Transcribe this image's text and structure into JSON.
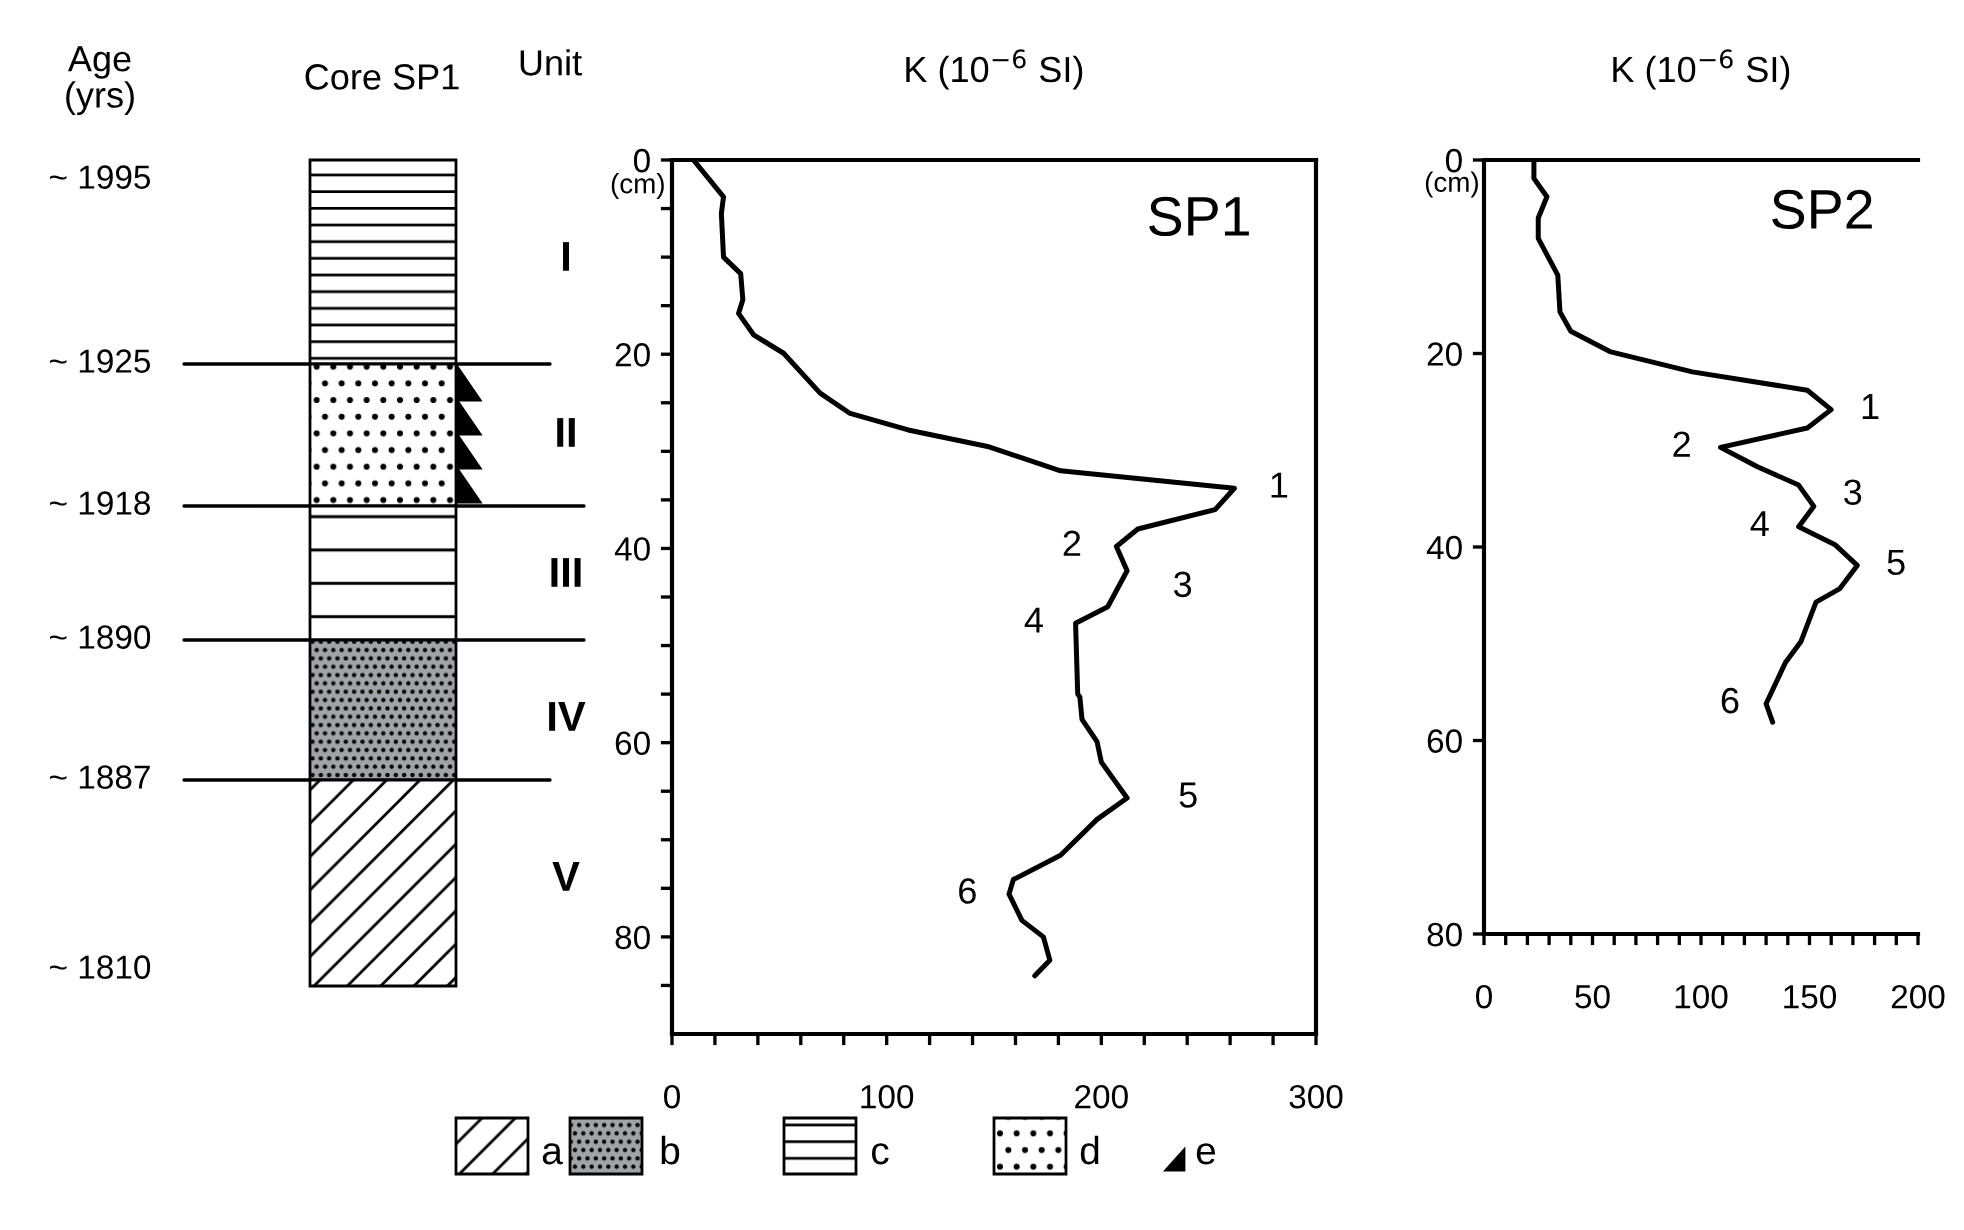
{
  "chart_data": [
    {
      "type": "other",
      "title": "Core SP1",
      "annotations": [
        "Age (yrs)",
        "Unit",
        "~ 1995",
        "~ 1925",
        "~ 1918",
        "~ 1890",
        "~ 1887",
        "~ 1810",
        "I",
        "II",
        "III",
        "IV",
        "V",
        "a",
        "b",
        "c",
        "d",
        "e"
      ]
    },
    {
      "type": "line",
      "title": "K (10$^{−6}$ SI)",
      "ylabel": "(cm)",
      "color": "#000000",
      "line_style": "solid",
      "marker": "none",
      "grid": false,
      "x": [
        10,
        24,
        23,
        24,
        32,
        33,
        31,
        38,
        52,
        69,
        83,
        110,
        147,
        181,
        262,
        253,
        217,
        207,
        212,
        203,
        188,
        189,
        190,
        191,
        198,
        200,
        212,
        198,
        181,
        159,
        157,
        163,
        173,
        176,
        169
      ],
      "values": [
        0,
        3.8,
        5.5,
        10,
        11.7,
        14.4,
        15.8,
        18,
        19.9,
        24,
        26.1,
        27.8,
        29.5,
        32,
        33.8,
        36,
        38,
        39.8,
        42.3,
        46,
        47.7,
        55,
        55.3,
        57.6,
        59.9,
        62,
        65.7,
        67.9,
        71.6,
        74.1,
        75.6,
        78.3,
        80,
        82.4,
        84
      ],
      "xlim": [
        0,
        300
      ],
      "ylim": [
        90,
        0
      ],
      "xticks": [
        0,
        {
          "value": 20,
          "label": null
        },
        {
          "value": 40,
          "label": null
        },
        {
          "value": 60,
          "label": null
        },
        {
          "value": 80,
          "label": null
        },
        100,
        {
          "value": 120,
          "label": null
        },
        {
          "value": 140,
          "label": null
        },
        {
          "value": 160,
          "label": null
        },
        {
          "value": 180,
          "label": null
        },
        200,
        {
          "value": 220,
          "label": null
        },
        {
          "value": 240,
          "label": null
        },
        {
          "value": 260,
          "label": null
        },
        {
          "value": 280,
          "label": null
        },
        300
      ],
      "yticks": [
        0,
        {
          "value": 5,
          "label": null
        },
        {
          "value": 10,
          "label": null
        },
        {
          "value": 15,
          "label": null
        },
        20,
        {
          "value": 25,
          "label": null
        },
        {
          "value": 30,
          "label": null
        },
        {
          "value": 35,
          "label": null
        },
        40,
        {
          "value": 45,
          "label": null
        },
        {
          "value": 50,
          "label": null
        },
        {
          "value": 55,
          "label": null
        },
        60,
        {
          "value": 65,
          "label": null
        },
        {
          "value": 70,
          "label": null
        },
        {
          "value": 75,
          "label": null
        },
        80,
        {
          "value": 85,
          "label": null
        }
      ],
      "annotations": [
        "SP1",
        {
          "text": "1",
          "x": 262,
          "y": 33.8
        },
        {
          "text": "2",
          "x": 207,
          "y": 39.8
        },
        {
          "text": "3",
          "x": 212,
          "y": 42.3
        },
        {
          "text": "4",
          "x": 188,
          "y": 47.7
        },
        {
          "text": "5",
          "x": 212,
          "y": 65.7
        },
        {
          "text": "6",
          "x": 157,
          "y": 75.6
        }
      ]
    },
    {
      "type": "line",
      "title": "K (10$^{−6}$ SI)",
      "ylabel": "(cm)",
      "color": "#000000",
      "line_style": "solid",
      "marker": "none",
      "grid": false,
      "x": [
        23,
        23,
        29,
        25,
        25,
        34,
        35,
        40,
        58,
        96,
        149,
        160,
        149,
        109,
        126,
        145,
        152,
        145,
        162,
        172,
        164,
        153,
        146,
        139,
        130,
        133
      ],
      "values": [
        0,
        1.9,
        3.8,
        6,
        8.1,
        11.9,
        15.7,
        17.7,
        19.8,
        21.9,
        23.8,
        25.8,
        27.7,
        29.7,
        31.7,
        33.6,
        35.8,
        37.9,
        39.8,
        41.9,
        44.3,
        45.7,
        49.8,
        51.9,
        56.2,
        58.1
      ],
      "xlim": [
        0,
        200
      ],
      "ylim": [
        80,
        0
      ],
      "xticks": [
        0,
        {
          "value": 10,
          "label": null
        },
        {
          "value": 20,
          "label": null
        },
        {
          "value": 30,
          "label": null
        },
        {
          "value": 40,
          "label": null
        },
        50,
        {
          "value": 60,
          "label": null
        },
        {
          "value": 70,
          "label": null
        },
        {
          "value": 80,
          "label": null
        },
        {
          "value": 90,
          "label": null
        },
        100,
        {
          "value": 110,
          "label": null
        },
        {
          "value": 120,
          "label": null
        },
        {
          "value": 130,
          "label": null
        },
        {
          "value": 140,
          "label": null
        },
        150,
        {
          "value": 160,
          "label": null
        },
        {
          "value": 170,
          "label": null
        },
        {
          "value": 180,
          "label": null
        },
        {
          "value": 190,
          "label": null
        },
        200
      ],
      "yticks": [
        0,
        20,
        40,
        60,
        80
      ],
      "annotations": [
        "SP2",
        {
          "text": "1",
          "x": 160,
          "y": 25.8
        },
        {
          "text": "2",
          "x": 109,
          "y": 29.7
        },
        {
          "text": "3",
          "x": 152,
          "y": 35.8
        },
        {
          "text": "4",
          "x": 145,
          "y": 37.9
        },
        {
          "text": "5",
          "x": 172,
          "y": 41.9
        },
        {
          "text": "6",
          "x": 130,
          "y": 56.2
        }
      ]
    }
  ]
}
